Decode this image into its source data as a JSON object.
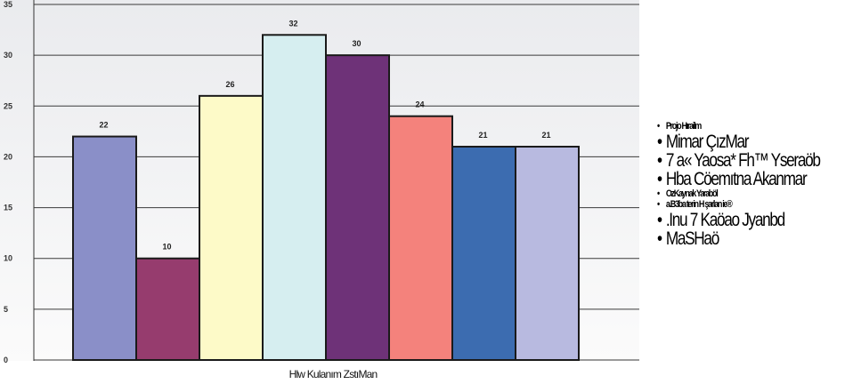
{
  "chart_data": {
    "type": "bar",
    "categories": [
      "",
      "",
      "",
      "",
      "",
      "",
      "",
      ""
    ],
    "values": [
      22,
      10,
      26,
      32,
      30,
      24,
      21,
      21
    ],
    "data_labels": [
      "22",
      "10",
      "26",
      "32",
      "30",
      "24",
      "21",
      "21"
    ],
    "colors": [
      "#8a8fc8",
      "#963c6e",
      "#fdfac8",
      "#d6eef0",
      "#6e3278",
      "#f4827c",
      "#3c6cb0",
      "#b8bae0"
    ],
    "ylim": [
      0,
      35
    ],
    "yticks": [
      "0",
      "5",
      "10",
      "15",
      "20",
      "25",
      "30",
      "35"
    ],
    "xlabel": "Hlw Kulanım ZstıMan",
    "ylabel": "",
    "title": "",
    "grid": true,
    "legend_position": "right",
    "legend": [
      {
        "label": "Projo Hırailm",
        "size": "small"
      },
      {
        "label": "Mimar ÇızMar",
        "size": "large"
      },
      {
        "label": "7 a« Yaosa* Fh™ Yseraöb",
        "size": "large"
      },
      {
        "label": "Hba Cöemıtna Akanmar",
        "size": "large"
      },
      {
        "label": "OzKaynak Yaraböl",
        "size": "small"
      },
      {
        "label": "a.B3ba terin H şarlan ie®",
        "size": "small"
      },
      {
        "label": ".Inu 7 Kaöao Jyanbd",
        "size": "large"
      },
      {
        "label": "MaSHaö",
        "size": "large"
      }
    ]
  }
}
